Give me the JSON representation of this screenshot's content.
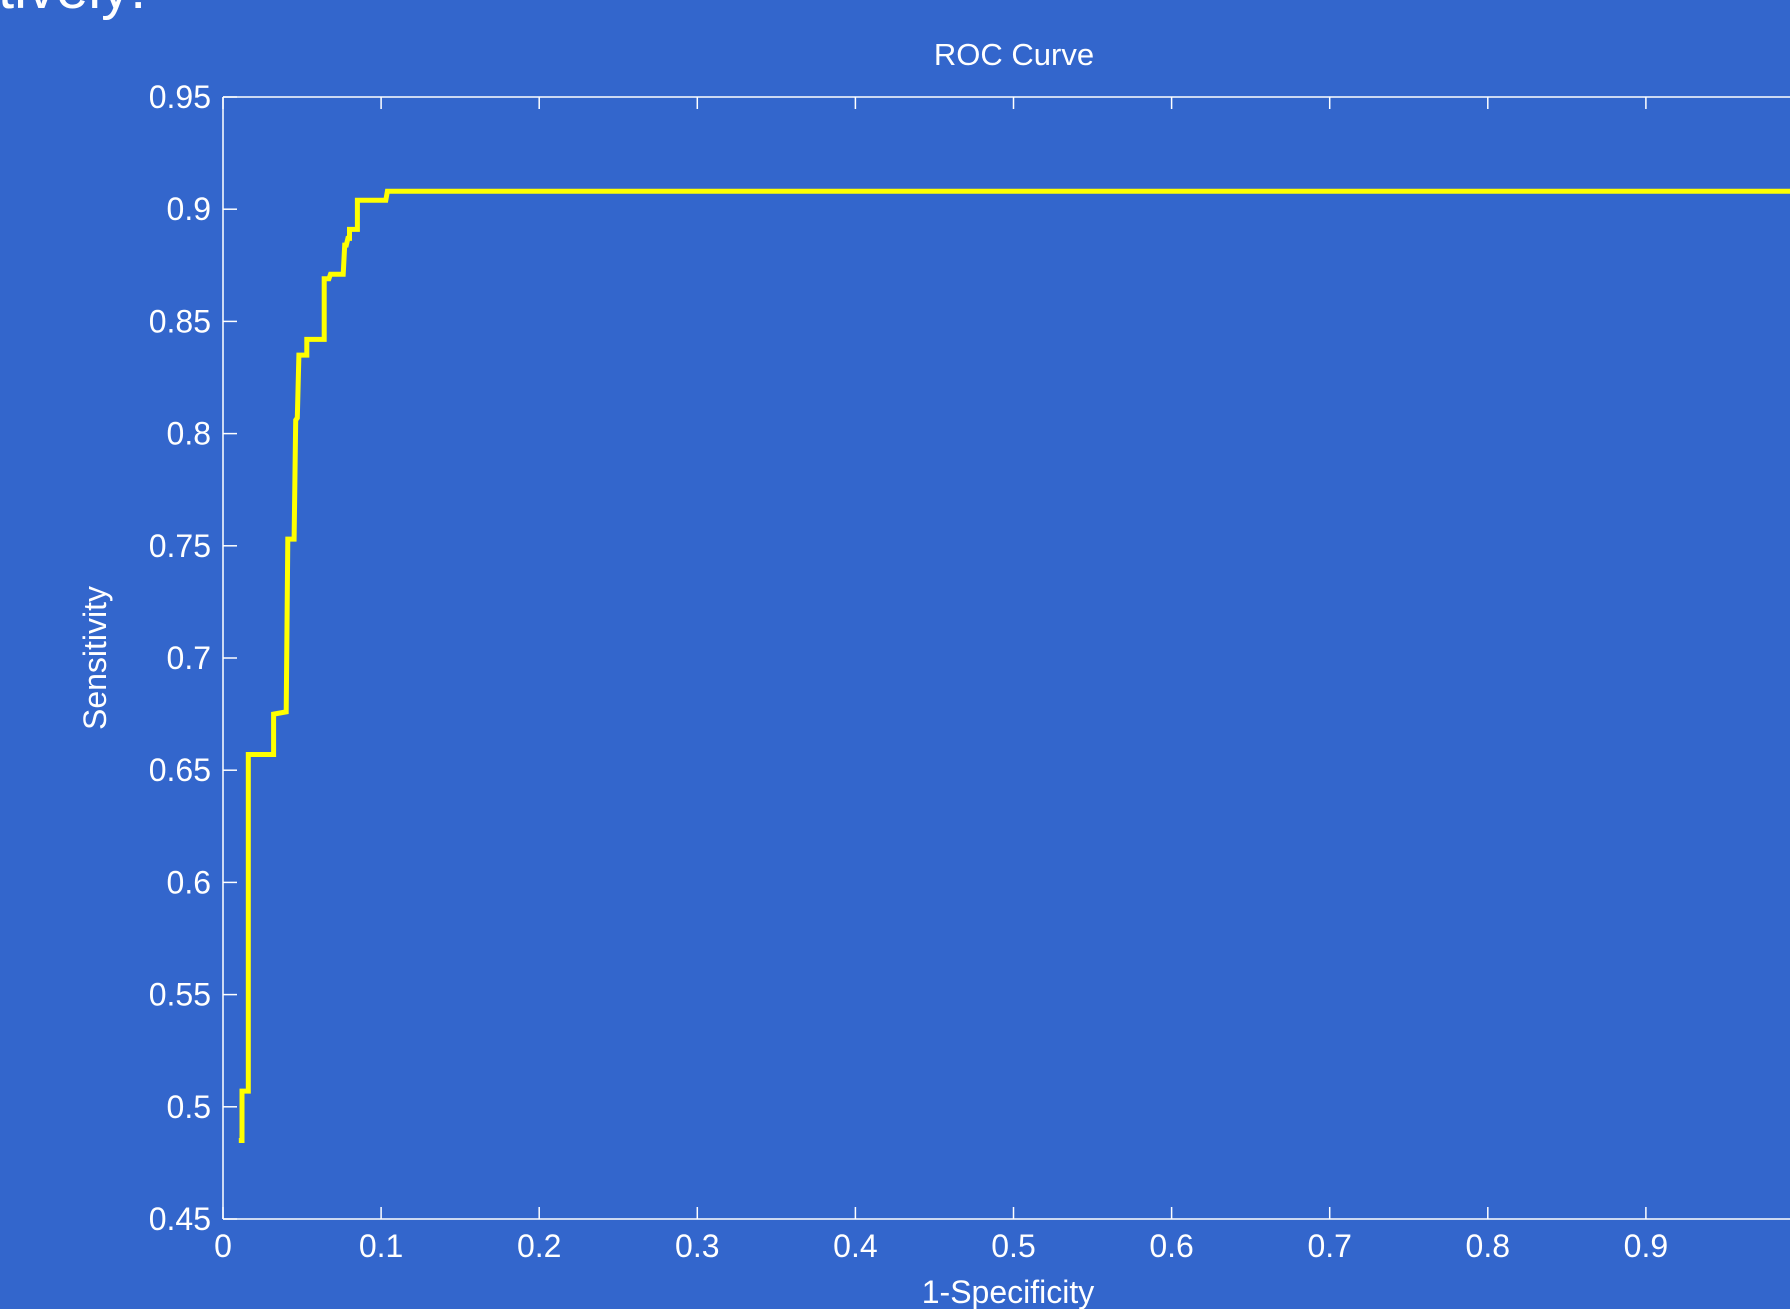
{
  "slide": {
    "title_fragment": "tively:",
    "background": "#3366CC"
  },
  "chart_data": {
    "type": "line",
    "title": "ROC Curve",
    "xlabel": "1-Specificity",
    "ylabel": "Sensitivity",
    "xlim": [
      0,
      1
    ],
    "ylim": [
      0.45,
      0.95
    ],
    "x_ticks": [
      0,
      0.1,
      0.2,
      0.3,
      0.4,
      0.5,
      0.6,
      0.7,
      0.8,
      0.9
    ],
    "x_tick_labels": [
      "0",
      "0.1",
      "0.2",
      "0.3",
      "0.4",
      "0.5",
      "0.6",
      "0.7",
      "0.8",
      "0.9"
    ],
    "y_ticks": [
      0.45,
      0.5,
      0.55,
      0.6,
      0.65,
      0.7,
      0.75,
      0.8,
      0.85,
      0.9,
      0.95
    ],
    "y_tick_labels": [
      "0.45",
      "0.5",
      "0.55",
      "0.6",
      "0.65",
      "0.7",
      "0.75",
      "0.8",
      "0.85",
      "0.9",
      "0.95"
    ],
    "grid": false,
    "legend": "none",
    "colors": {
      "background": "#3366CC",
      "axes": "#FFFFFF",
      "text": "#FFFFFF",
      "line": "#FFFF00"
    },
    "series": [
      {
        "x": [
          0.01,
          0.012,
          0.012,
          0.016,
          0.016,
          0.032,
          0.032,
          0.04,
          0.041,
          0.045,
          0.046,
          0.047,
          0.048,
          0.053,
          0.053,
          0.064,
          0.064,
          0.067,
          0.068,
          0.076,
          0.077,
          0.078,
          0.079,
          0.08,
          0.08,
          0.082,
          0.085,
          0.085,
          0.103,
          0.104,
          1.0
        ],
        "y": [
          0.485,
          0.485,
          0.507,
          0.507,
          0.657,
          0.657,
          0.675,
          0.676,
          0.753,
          0.753,
          0.806,
          0.807,
          0.835,
          0.835,
          0.842,
          0.842,
          0.869,
          0.869,
          0.871,
          0.871,
          0.884,
          0.884,
          0.887,
          0.887,
          0.891,
          0.891,
          0.891,
          0.904,
          0.904,
          0.908,
          0.908
        ]
      }
    ]
  }
}
